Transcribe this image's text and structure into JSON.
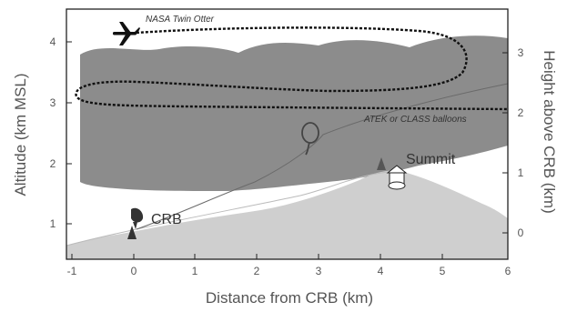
{
  "axes": {
    "x_title": "Distance from CRB (km)",
    "y_left_title": "Altitude  (km MSL)",
    "y_right_title": "Height above CRB  (km)",
    "x_ticks": [
      "-1",
      "0",
      "1",
      "2",
      "3",
      "4",
      "5",
      "6"
    ],
    "y_left_ticks": [
      "1",
      "2",
      "3",
      "4"
    ],
    "y_right_ticks": [
      "0",
      "1",
      "2",
      "3"
    ]
  },
  "annotations": {
    "aircraft": "NASA Twin Otter",
    "balloons": "ATEK or CLASS balloons",
    "summit": "Summit",
    "crb": "CRB"
  },
  "colors": {
    "cloud": "#8c8c8c",
    "terrain": "#cfcfcf",
    "frame": "#222222",
    "flight_track": "#111111"
  },
  "icons": [
    "airplane-icon",
    "balloon-icon",
    "radar-dish-icon",
    "tower-icon",
    "building-icon"
  ]
}
